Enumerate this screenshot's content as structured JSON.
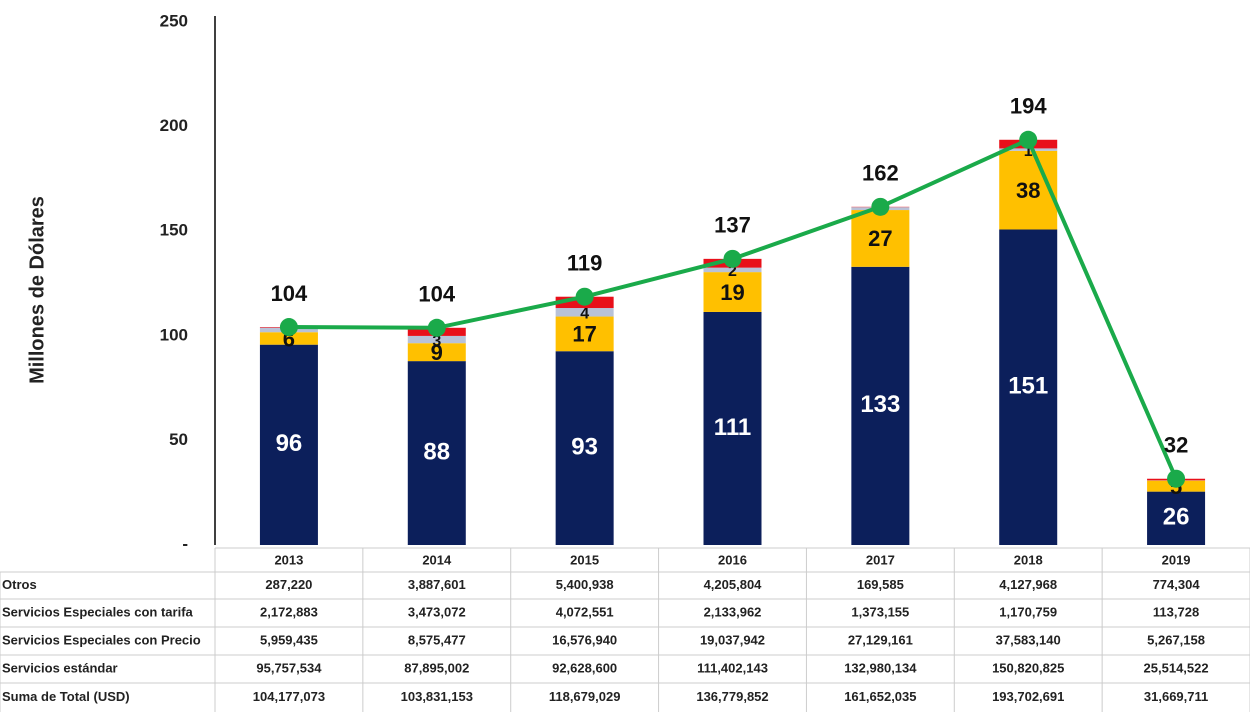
{
  "chart_data": {
    "type": "bar",
    "stacked": true,
    "y_label": "Millones de Dólares",
    "categories": [
      "2013",
      "2014",
      "2015",
      "2016",
      "2017",
      "2018",
      "2019"
    ],
    "ylim": [
      0,
      250
    ],
    "yticks": [
      {
        "value": 0,
        "label": "-"
      },
      50,
      100,
      150,
      200,
      250
    ],
    "grid": false,
    "series": [
      {
        "name": "Servicios estándar",
        "color": "#0c1f5b",
        "values": [
          95.757534,
          87.895002,
          92.6286,
          111.402143,
          132.980134,
          150.820825,
          25.514522
        ],
        "value_labels": [
          "96",
          "88",
          "93",
          "111",
          "133",
          "151",
          "26"
        ],
        "table_labels": [
          "95,757,534",
          "87,895,002",
          "92,628,600",
          "111,402,143",
          "132,980,134",
          "150,820,825",
          "25,514,522"
        ]
      },
      {
        "name": "Servicios Especiales con Precio",
        "color": "#ffc000",
        "values": [
          5.959435,
          8.575477,
          16.57694,
          19.037942,
          27.129161,
          37.58314,
          5.267158
        ],
        "value_labels": [
          "6",
          "9",
          "17",
          "19",
          "27",
          "38",
          "5"
        ],
        "table_labels": [
          "5,959,435",
          "8,575,477",
          "16,576,940",
          "19,037,942",
          "27,129,161",
          "37,583,140",
          "5,267,158"
        ]
      },
      {
        "name": "Servicios Especiales con tarifa",
        "color": "#b8c2d8",
        "values": [
          2.172883,
          3.473072,
          4.072551,
          2.133962,
          1.373155,
          1.170759,
          0.113728
        ],
        "value_labels": [
          "2",
          "3",
          "4",
          "2",
          "1",
          "1",
          "0"
        ],
        "table_labels": [
          "2,172,883",
          "3,473,072",
          "4,072,551",
          "2,133,962",
          "1,373,155",
          "1,170,759",
          "113,728"
        ]
      },
      {
        "name": "Otros",
        "color": "#e8101a",
        "values": [
          0.28722,
          3.887601,
          5.400938,
          4.205804,
          0.169585,
          4.127968,
          0.774304
        ],
        "table_labels": [
          "287,220",
          "3,887,601",
          "5,400,938",
          "4,205,804",
          "169,585",
          "4,127,968",
          "774,304"
        ]
      },
      {
        "name": "Suma de  Total (USD)",
        "color": "#1aaa4a",
        "type": "line",
        "values": [
          104.177073,
          103.831153,
          118.679029,
          136.779852,
          161.652035,
          193.702691,
          31.669711
        ],
        "value_labels": [
          "104",
          "104",
          "119",
          "137",
          "162",
          "194",
          "32"
        ],
        "table_labels": [
          "104,177,073",
          "103,831,153",
          "118,679,029",
          "136,779,852",
          "161,652,035",
          "193,702,691",
          "31,669,711"
        ]
      }
    ]
  }
}
